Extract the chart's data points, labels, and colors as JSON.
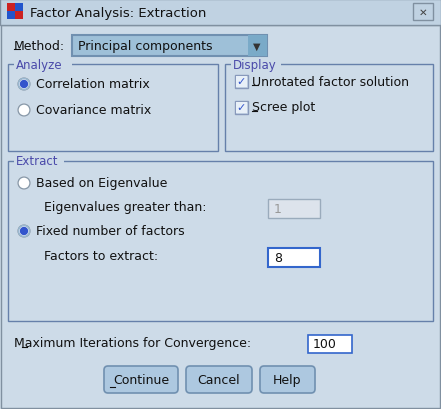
{
  "title": "Factor Analysis: Extraction",
  "bg_color": "#cddbe8",
  "titlebar_color": "#c2d3e2",
  "border_color": "#7a9ab5",
  "method_label": "Method:",
  "method_value": "Principal components",
  "analyze_label": "Analyze",
  "analyze_options": [
    "Correlation matrix",
    "Covariance matrix"
  ],
  "analyze_selected": 0,
  "display_label": "Display",
  "display_options": [
    "Unrotated factor solution",
    "Scree plot"
  ],
  "display_checked": [
    true,
    true
  ],
  "extract_label": "Extract",
  "extract_options": [
    "Based on Eigenvalue",
    "Fixed number of factors"
  ],
  "extract_selected": 1,
  "eigenvalue_label": "Eigenvalues greater than:",
  "eigenvalue_value": "1",
  "factors_label": "Factors to extract:",
  "factors_value": "8",
  "max_iter_label": "Maximum Iterations for Convergence:",
  "max_iter_value": "100",
  "buttons": [
    "Continue",
    "Cancel",
    "Help"
  ],
  "group_label_color": "#4a4aaa",
  "text_color": "#111111",
  "radio_active_color": "#3355cc",
  "checkbox_check_color": "#3355cc",
  "input_bg": "#ffffff",
  "input_disabled_bg": "#dde3ec",
  "button_color": "#adc8e0",
  "button_border": "#7090b0",
  "dropdown_bg": "#9ec0d8",
  "dropdown_arrow_bg": "#7aaac8",
  "group_border_color": "#6680aa"
}
